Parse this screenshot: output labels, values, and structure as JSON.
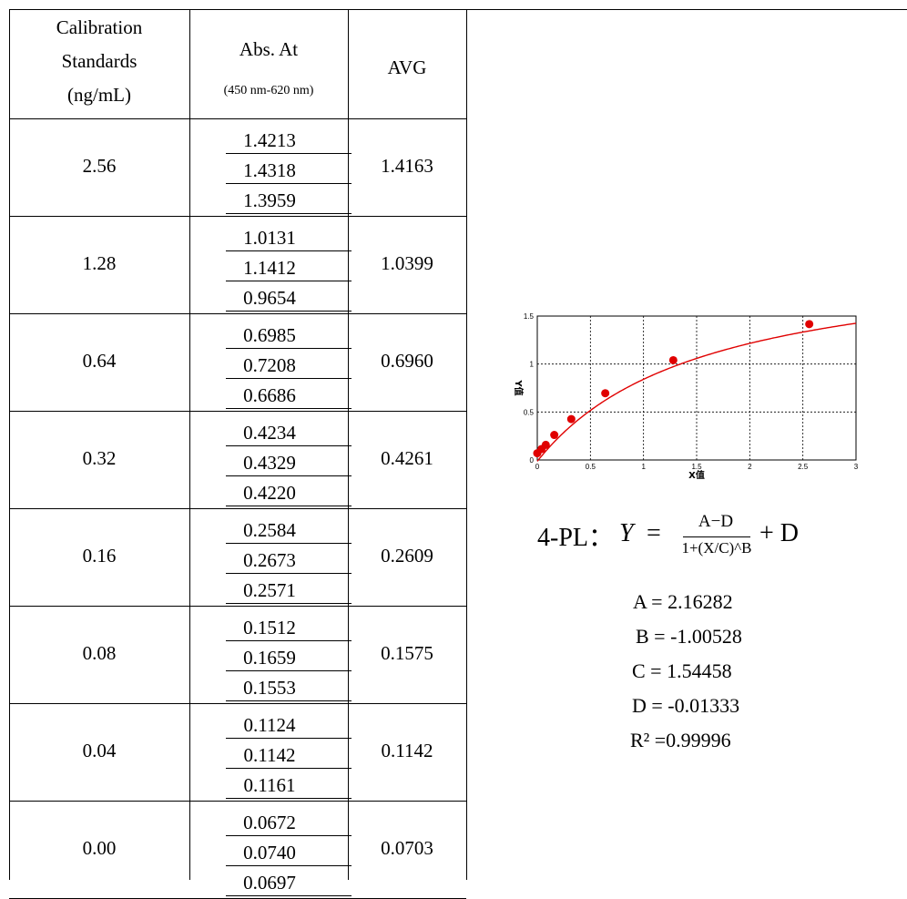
{
  "table": {
    "headers": {
      "standards": [
        "Calibration",
        "Standards",
        "(ng/mL)"
      ],
      "abs_title": "Abs. At",
      "abs_sub": "(450 nm-620 nm)",
      "avg": "AVG"
    },
    "rows": [
      {
        "conc": "2.56",
        "abs": [
          "1.4213",
          "1.4318",
          "1.3959"
        ],
        "avg": "1.4163"
      },
      {
        "conc": "1.28",
        "abs": [
          "1.0131",
          "1.1412",
          "0.9654"
        ],
        "avg": "1.0399"
      },
      {
        "conc": "0.64",
        "abs": [
          "0.6985",
          "0.7208",
          "0.6686"
        ],
        "avg": "0.6960"
      },
      {
        "conc": "0.32",
        "abs": [
          "0.4234",
          "0.4329",
          "0.4220"
        ],
        "avg": "0.4261"
      },
      {
        "conc": "0.16",
        "abs": [
          "0.2584",
          "0.2673",
          "0.2571"
        ],
        "avg": "0.2609"
      },
      {
        "conc": "0.08",
        "abs": [
          "0.1512",
          "0.1659",
          "0.1553"
        ],
        "avg": "0.1575"
      },
      {
        "conc": "0.04",
        "abs": [
          "0.1124",
          "0.1142",
          "0.1161"
        ],
        "avg": "0.1142"
      },
      {
        "conc": "0.00",
        "abs": [
          "0.0672",
          "0.0740",
          "0.0697"
        ],
        "avg": "0.0703"
      }
    ]
  },
  "formula": {
    "prefix": "4-PL：",
    "y": "Y",
    "eq": "=",
    "numerator": "A−D",
    "denominator": "1+(X/C)^B",
    "plus": "+ D"
  },
  "params": [
    "A = 2.16282",
    "B = -1.00528",
    "C = 1.54458",
    "D = -0.01333",
    "R² =0.99996"
  ],
  "chart_data": {
    "type": "scatter",
    "xlabel": "X值",
    "ylabel": "Y值",
    "xlim": [
      0,
      3
    ],
    "ylim": [
      0,
      1.5
    ],
    "xticks": [
      "0",
      "0.5",
      "1",
      "1.5",
      "2",
      "2.5",
      "3"
    ],
    "yticks": [
      "0",
      "0.5",
      "1",
      "1.5"
    ],
    "grid": true,
    "series": [
      {
        "x": [
          0.0,
          0.04,
          0.08,
          0.16,
          0.32,
          0.64,
          1.28,
          2.56
        ],
        "y": [
          0.0703,
          0.1142,
          0.1575,
          0.2609,
          0.4261,
          0.696,
          1.0399,
          1.4163
        ]
      }
    ],
    "fit": {
      "A": 2.16282,
      "B": -1.00528,
      "C": 1.54458,
      "D": -0.01333
    },
    "color": "#e00000"
  }
}
